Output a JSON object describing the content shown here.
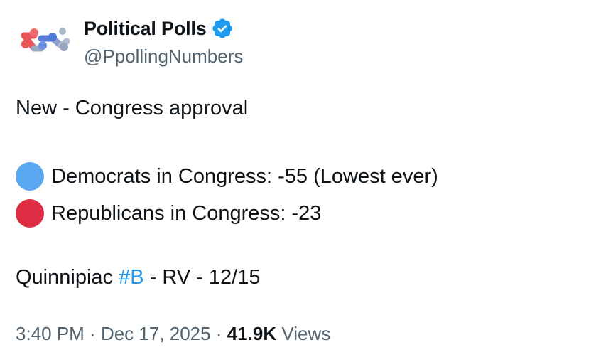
{
  "author": {
    "display_name": "Political Polls",
    "handle": "@PpollingNumbers",
    "verified": true,
    "avatar_icon": "polling-network-logo-icon",
    "verified_icon": "verified-badge-icon",
    "badge_color": "#1d9bf0"
  },
  "tweet": {
    "line1": "New - Congress approval",
    "dem": {
      "dot_color": "#5aa9f0",
      "text": "Democrats in Congress: -55 (Lowest ever)"
    },
    "rep": {
      "dot_color": "#dd2e44",
      "text": "Republicans in Congress: -23"
    },
    "source_prefix": "Quinnipiac ",
    "hashtag": "#B",
    "source_suffix": " - RV - 12/15"
  },
  "meta": {
    "time": "3:40 PM",
    "separator": " · ",
    "date": "Dec 17, 2025",
    "views_count": "41.9K",
    "views_label": " Views"
  },
  "colors": {
    "text_primary": "#0f1419",
    "text_secondary": "#536471",
    "link": "#1d9bf0"
  }
}
